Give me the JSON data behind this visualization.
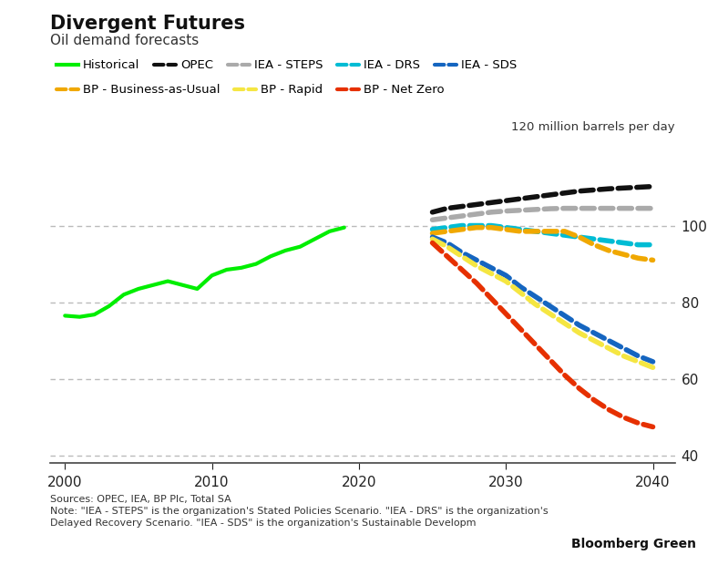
{
  "title": "Divergent Futures",
  "subtitle": "Oil demand forecasts",
  "ylabel_annotation": "120 million barrels per day",
  "source_text": "Sources: OPEC, IEA, BP Plc, Total SA\nNote: \"IEA - STEPS\" is the organization's Stated Policies Scenario. \"IEA - DRS\" is the organization's\nDelayed Recovery Scenario. \"IEA - SDS\" is the organization's Sustainable Developm",
  "bloomberg_text": "Bloomberg Green",
  "background_color": "#ffffff",
  "historical": {
    "years": [
      2000,
      2001,
      2002,
      2003,
      2004,
      2005,
      2006,
      2007,
      2008,
      2009,
      2010,
      2011,
      2012,
      2013,
      2014,
      2015,
      2016,
      2017,
      2018,
      2019
    ],
    "values": [
      76.5,
      76.2,
      76.8,
      79.0,
      82.0,
      83.5,
      84.5,
      85.5,
      84.5,
      83.5,
      87.0,
      88.5,
      89.0,
      90.0,
      92.0,
      93.5,
      94.5,
      96.5,
      98.5,
      99.5
    ],
    "color": "#00ee00",
    "linewidth": 3.0
  },
  "forecasts": [
    {
      "name": "OPEC",
      "years": [
        2025,
        2026,
        2027,
        2028,
        2029,
        2030,
        2031,
        2032,
        2033,
        2034,
        2035,
        2036,
        2037,
        2038,
        2039,
        2040
      ],
      "values": [
        103.5,
        104.5,
        105.0,
        105.5,
        106.0,
        106.5,
        107.0,
        107.5,
        108.0,
        108.5,
        109.0,
        109.3,
        109.6,
        109.8,
        110.0,
        110.2
      ],
      "color": "#111111",
      "linewidth": 4.0
    },
    {
      "name": "IEA - STEPS",
      "years": [
        2025,
        2026,
        2027,
        2028,
        2029,
        2030,
        2031,
        2032,
        2033,
        2034,
        2035,
        2036,
        2037,
        2038,
        2039,
        2040
      ],
      "values": [
        101.5,
        102.0,
        102.5,
        103.0,
        103.5,
        103.8,
        104.0,
        104.2,
        104.4,
        104.5,
        104.5,
        104.5,
        104.5,
        104.5,
        104.5,
        104.5
      ],
      "color": "#aaaaaa",
      "linewidth": 4.0
    },
    {
      "name": "IEA - DRS",
      "years": [
        2025,
        2026,
        2027,
        2028,
        2029,
        2030,
        2031,
        2032,
        2033,
        2034,
        2035,
        2036,
        2037,
        2038,
        2039,
        2040
      ],
      "values": [
        99.0,
        99.5,
        100.0,
        100.0,
        100.0,
        99.5,
        99.0,
        98.5,
        98.0,
        97.5,
        97.0,
        96.5,
        96.0,
        95.5,
        95.0,
        95.0
      ],
      "color": "#00bcd4",
      "linewidth": 4.0
    },
    {
      "name": "BP - Business-as-Usual",
      "years": [
        2025,
        2026,
        2027,
        2028,
        2029,
        2030,
        2031,
        2032,
        2033,
        2034,
        2035,
        2036,
        2037,
        2038,
        2039,
        2040
      ],
      "values": [
        98.0,
        98.5,
        99.0,
        99.5,
        99.5,
        99.0,
        98.5,
        98.5,
        98.5,
        98.5,
        97.0,
        95.0,
        93.5,
        92.5,
        91.5,
        91.0
      ],
      "color": "#f0a800",
      "linewidth": 4.0
    },
    {
      "name": "IEA - SDS",
      "years": [
        2025,
        2026,
        2027,
        2028,
        2029,
        2030,
        2031,
        2032,
        2033,
        2034,
        2035,
        2036,
        2037,
        2038,
        2039,
        2040
      ],
      "values": [
        97.0,
        95.5,
        93.0,
        91.0,
        89.0,
        87.0,
        84.0,
        81.5,
        79.0,
        76.5,
        74.0,
        72.0,
        70.0,
        68.0,
        66.0,
        64.5
      ],
      "color": "#1565c0",
      "linewidth": 4.0
    },
    {
      "name": "BP - Rapid",
      "years": [
        2025,
        2026,
        2027,
        2028,
        2029,
        2030,
        2031,
        2032,
        2033,
        2034,
        2035,
        2036,
        2037,
        2038,
        2039,
        2040
      ],
      "values": [
        96.5,
        94.5,
        92.0,
        89.5,
        87.5,
        85.5,
        82.5,
        79.5,
        77.0,
        74.5,
        72.0,
        70.0,
        68.0,
        66.0,
        64.5,
        63.0
      ],
      "color": "#f5e642",
      "linewidth": 4.0
    },
    {
      "name": "BP - Net Zero",
      "years": [
        2025,
        2026,
        2027,
        2028,
        2029,
        2030,
        2031,
        2032,
        2033,
        2034,
        2035,
        2036,
        2037,
        2038,
        2039,
        2040
      ],
      "values": [
        95.5,
        92.0,
        88.5,
        85.0,
        81.0,
        77.0,
        73.0,
        69.0,
        65.0,
        61.0,
        57.5,
        54.5,
        52.0,
        50.0,
        48.5,
        47.5
      ],
      "color": "#e63000",
      "linewidth": 4.0
    }
  ],
  "xlim": [
    1999,
    2041.5
  ],
  "ylim": [
    38,
    122
  ],
  "xticks": [
    2000,
    2010,
    2020,
    2030,
    2040
  ],
  "yticks": [
    40,
    60,
    80,
    100
  ],
  "grid_color": "#bbbbbb",
  "legend_entries": [
    {
      "label": "Historical",
      "color": "#00ee00",
      "solid": true
    },
    {
      "label": "OPEC",
      "color": "#111111",
      "solid": false
    },
    {
      "label": "IEA - STEPS",
      "color": "#aaaaaa",
      "solid": false
    },
    {
      "label": "IEA - DRS",
      "color": "#00bcd4",
      "solid": false
    },
    {
      "label": "IEA - SDS",
      "color": "#1565c0",
      "solid": false
    },
    {
      "label": "BP - Business-as-Usual",
      "color": "#f0a800",
      "solid": false
    },
    {
      "label": "BP - Rapid",
      "color": "#f5e642",
      "solid": false
    },
    {
      "label": "BP - Net Zero",
      "color": "#e63000",
      "solid": false
    }
  ]
}
